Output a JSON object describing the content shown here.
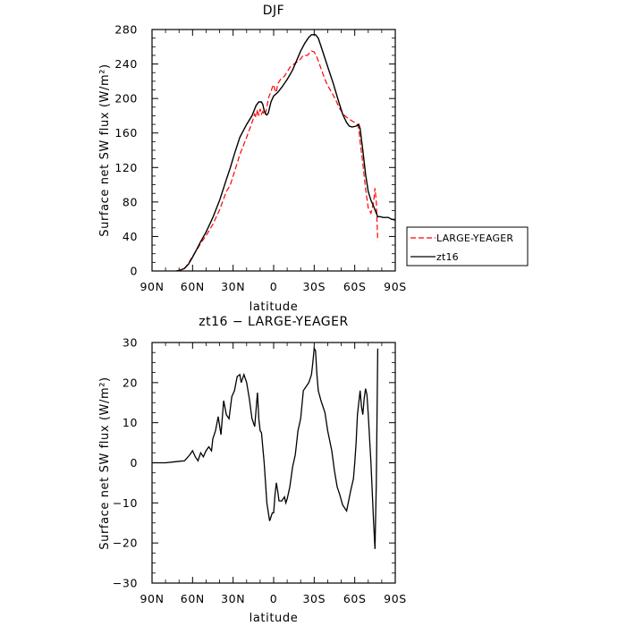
{
  "chart_data": [
    {
      "type": "line",
      "title": "DJF",
      "xlabel": "latitude",
      "ylabel": "Surface net SW flux (W/m²)",
      "xlim": [
        90,
        -90
      ],
      "ylim": [
        0,
        280
      ],
      "xticks": [
        90,
        60,
        30,
        0,
        -30,
        -60,
        -90
      ],
      "xtick_labels": [
        "90N",
        "60N",
        "30N",
        "0",
        "30S",
        "60S",
        "90S"
      ],
      "yticks": [
        0,
        40,
        80,
        120,
        160,
        200,
        240,
        280
      ],
      "ytick_labels": [
        "0",
        "40",
        "80",
        "120",
        "160",
        "200",
        "240",
        "280"
      ],
      "legend": {
        "position": "outside-right"
      },
      "series": [
        {
          "name": "LARGE-YEAGER",
          "color": "#ff0000",
          "style": "dashed",
          "points": [
            [
              72,
              0
            ],
            [
              69,
              1
            ],
            [
              66,
              3
            ],
            [
              63,
              9
            ],
            [
              60,
              17
            ],
            [
              57,
              24
            ],
            [
              54,
              32
            ],
            [
              50,
              41
            ],
            [
              45,
              54
            ],
            [
              40,
              71
            ],
            [
              35,
              92
            ],
            [
              32,
              100
            ],
            [
              29,
              115
            ],
            [
              25,
              135
            ],
            [
              20,
              155
            ],
            [
              16,
              172
            ],
            [
              14,
              182
            ],
            [
              13,
              178
            ],
            [
              12,
              187
            ],
            [
              11,
              180
            ],
            [
              10,
              188
            ],
            [
              9,
              182
            ],
            [
              8,
              185
            ],
            [
              7,
              181
            ],
            [
              6,
              183
            ],
            [
              5,
              190
            ],
            [
              4,
              200
            ],
            [
              2,
              208
            ],
            [
              1,
              213
            ],
            [
              0,
              216
            ],
            [
              -1,
              210
            ],
            [
              -2,
              207
            ],
            [
              -3,
              217
            ],
            [
              -5,
              222
            ],
            [
              -8,
              226
            ],
            [
              -10,
              231
            ],
            [
              -12,
              236
            ],
            [
              -15,
              240
            ],
            [
              -18,
              243
            ],
            [
              -20,
              246
            ],
            [
              -22,
              250
            ],
            [
              -25,
              250
            ],
            [
              -28,
              255
            ],
            [
              -30,
              254
            ],
            [
              -32,
              248
            ],
            [
              -35,
              235
            ],
            [
              -38,
              222
            ],
            [
              -40,
              215
            ],
            [
              -43,
              207
            ],
            [
              -46,
              198
            ],
            [
              -49,
              188
            ],
            [
              -52,
              181
            ],
            [
              -55,
              177
            ],
            [
              -58,
              174
            ],
            [
              -60,
              172
            ],
            [
              -62,
              170
            ],
            [
              -63,
              165
            ],
            [
              -64,
              150
            ],
            [
              -66,
              125
            ],
            [
              -68,
              95
            ],
            [
              -70,
              73
            ],
            [
              -72,
              67
            ],
            [
              -74,
              80
            ],
            [
              -75,
              96
            ],
            [
              -76,
              80
            ],
            [
              -77,
              35
            ]
          ]
        },
        {
          "name": "zt16",
          "color": "#000000",
          "style": "solid",
          "points": [
            [
              72,
              0
            ],
            [
              69,
              1
            ],
            [
              66,
              3
            ],
            [
              63,
              8
            ],
            [
              60,
              16
            ],
            [
              57,
              25
            ],
            [
              54,
              34
            ],
            [
              50,
              45
            ],
            [
              45,
              62
            ],
            [
              40,
              82
            ],
            [
              35,
              106
            ],
            [
              32,
              120
            ],
            [
              29,
              136
            ],
            [
              25,
              155
            ],
            [
              20,
              170
            ],
            [
              16,
              180
            ],
            [
              13,
              192
            ],
            [
              11,
              196
            ],
            [
              9,
              196
            ],
            [
              8,
              193
            ],
            [
              7,
              186
            ],
            [
              6,
              182
            ],
            [
              5,
              181
            ],
            [
              4,
              183
            ],
            [
              2,
              196
            ],
            [
              0,
              203
            ],
            [
              -3,
              207
            ],
            [
              -6,
              213
            ],
            [
              -10,
              222
            ],
            [
              -14,
              233
            ],
            [
              -17,
              244
            ],
            [
              -20,
              255
            ],
            [
              -23,
              264
            ],
            [
              -26,
              271
            ],
            [
              -28,
              274
            ],
            [
              -31,
              274
            ],
            [
              -33,
              270
            ],
            [
              -36,
              256
            ],
            [
              -40,
              237
            ],
            [
              -44,
              218
            ],
            [
              -48,
              197
            ],
            [
              -51,
              182
            ],
            [
              -54,
              172
            ],
            [
              -56,
              168
            ],
            [
              -58,
              167
            ],
            [
              -61,
              168
            ],
            [
              -63,
              170
            ],
            [
              -64,
              165
            ],
            [
              -66,
              140
            ],
            [
              -68,
              112
            ],
            [
              -70,
              92
            ],
            [
              -72,
              82
            ],
            [
              -74,
              75
            ],
            [
              -76,
              67
            ],
            [
              -77,
              63
            ],
            [
              -79,
              63
            ],
            [
              -81,
              62
            ],
            [
              -83,
              62
            ],
            [
              -85,
              62
            ],
            [
              -87,
              60
            ],
            [
              -90,
              59
            ]
          ]
        }
      ]
    },
    {
      "type": "line",
      "title": "zt16 − LARGE-YEAGER",
      "xlabel": "latitude",
      "ylabel": "Surface net SW flux (W/m²)",
      "xlim": [
        90,
        -90
      ],
      "ylim": [
        -30,
        30
      ],
      "xticks": [
        90,
        60,
        30,
        0,
        -30,
        -60,
        -90
      ],
      "xtick_labels": [
        "90N",
        "60N",
        "30N",
        "0",
        "30S",
        "60S",
        "90S"
      ],
      "yticks": [
        -30,
        -20,
        -10,
        0,
        10,
        20,
        30
      ],
      "ytick_labels": [
        "−30",
        "−20",
        "−10",
        "0",
        "10",
        "20",
        "30"
      ],
      "series": [
        {
          "color": "#000000",
          "style": "solid",
          "points": [
            [
              90,
              0
            ],
            [
              80,
              0
            ],
            [
              72,
              0.3
            ],
            [
              66,
              0.5
            ],
            [
              62,
              2
            ],
            [
              60,
              3
            ],
            [
              58,
              1.5
            ],
            [
              56,
              0.5
            ],
            [
              54,
              2.5
            ],
            [
              52,
              1.5
            ],
            [
              50,
              3
            ],
            [
              48,
              4
            ],
            [
              46,
              3
            ],
            [
              45,
              6
            ],
            [
              43,
              8
            ],
            [
              41,
              11.5
            ],
            [
              39,
              7
            ],
            [
              37,
              15.5
            ],
            [
              35,
              12
            ],
            [
              33,
              11
            ],
            [
              31,
              16.5
            ],
            [
              29,
              18
            ],
            [
              27,
              21.5
            ],
            [
              25,
              22
            ],
            [
              24,
              20
            ],
            [
              22,
              22
            ],
            [
              20,
              20
            ],
            [
              18,
              16
            ],
            [
              16,
              11
            ],
            [
              14,
              9
            ],
            [
              12,
              17.5
            ],
            [
              11,
              11
            ],
            [
              10,
              8
            ],
            [
              9,
              7.5
            ],
            [
              7,
              0
            ],
            [
              5,
              -10
            ],
            [
              3,
              -14.5
            ],
            [
              1,
              -12.5
            ],
            [
              0,
              -12.5
            ],
            [
              -1,
              -8
            ],
            [
              -2,
              -5
            ],
            [
              -3,
              -7
            ],
            [
              -4,
              -9.5
            ],
            [
              -6,
              -9.5
            ],
            [
              -8,
              -8.5
            ],
            [
              -9,
              -10
            ],
            [
              -10,
              -9
            ],
            [
              -12,
              -6
            ],
            [
              -14,
              -1
            ],
            [
              -16,
              2
            ],
            [
              -17,
              5
            ],
            [
              -18,
              8
            ],
            [
              -20,
              11
            ],
            [
              -21,
              14.5
            ],
            [
              -22,
              18
            ],
            [
              -24,
              19
            ],
            [
              -26,
              20
            ],
            [
              -28,
              22
            ],
            [
              -29,
              25
            ],
            [
              -30,
              28.5
            ],
            [
              -31,
              28
            ],
            [
              -32,
              22
            ],
            [
              -33,
              18
            ],
            [
              -35,
              15.5
            ],
            [
              -37,
              13.5
            ],
            [
              -38,
              12.5
            ],
            [
              -40,
              8
            ],
            [
              -43,
              3
            ],
            [
              -45,
              -2
            ],
            [
              -47,
              -6
            ],
            [
              -49,
              -8
            ],
            [
              -51,
              -10.5
            ],
            [
              -54,
              -12
            ],
            [
              -57,
              -7
            ],
            [
              -59,
              -4
            ],
            [
              -60,
              0
            ],
            [
              -61,
              5
            ],
            [
              -62,
              12
            ],
            [
              -63,
              15
            ],
            [
              -64,
              18
            ],
            [
              -65,
              14
            ],
            [
              -66,
              12
            ],
            [
              -67,
              16
            ],
            [
              -68,
              18.5
            ],
            [
              -69,
              17
            ],
            [
              -70,
              12
            ],
            [
              -72,
              0
            ],
            [
              -74,
              -15
            ],
            [
              -75,
              -21.5
            ],
            [
              -76,
              -5
            ],
            [
              -77,
              28.5
            ]
          ]
        }
      ]
    }
  ],
  "legend_labels": [
    "LARGE-YEAGER",
    "zt16"
  ]
}
